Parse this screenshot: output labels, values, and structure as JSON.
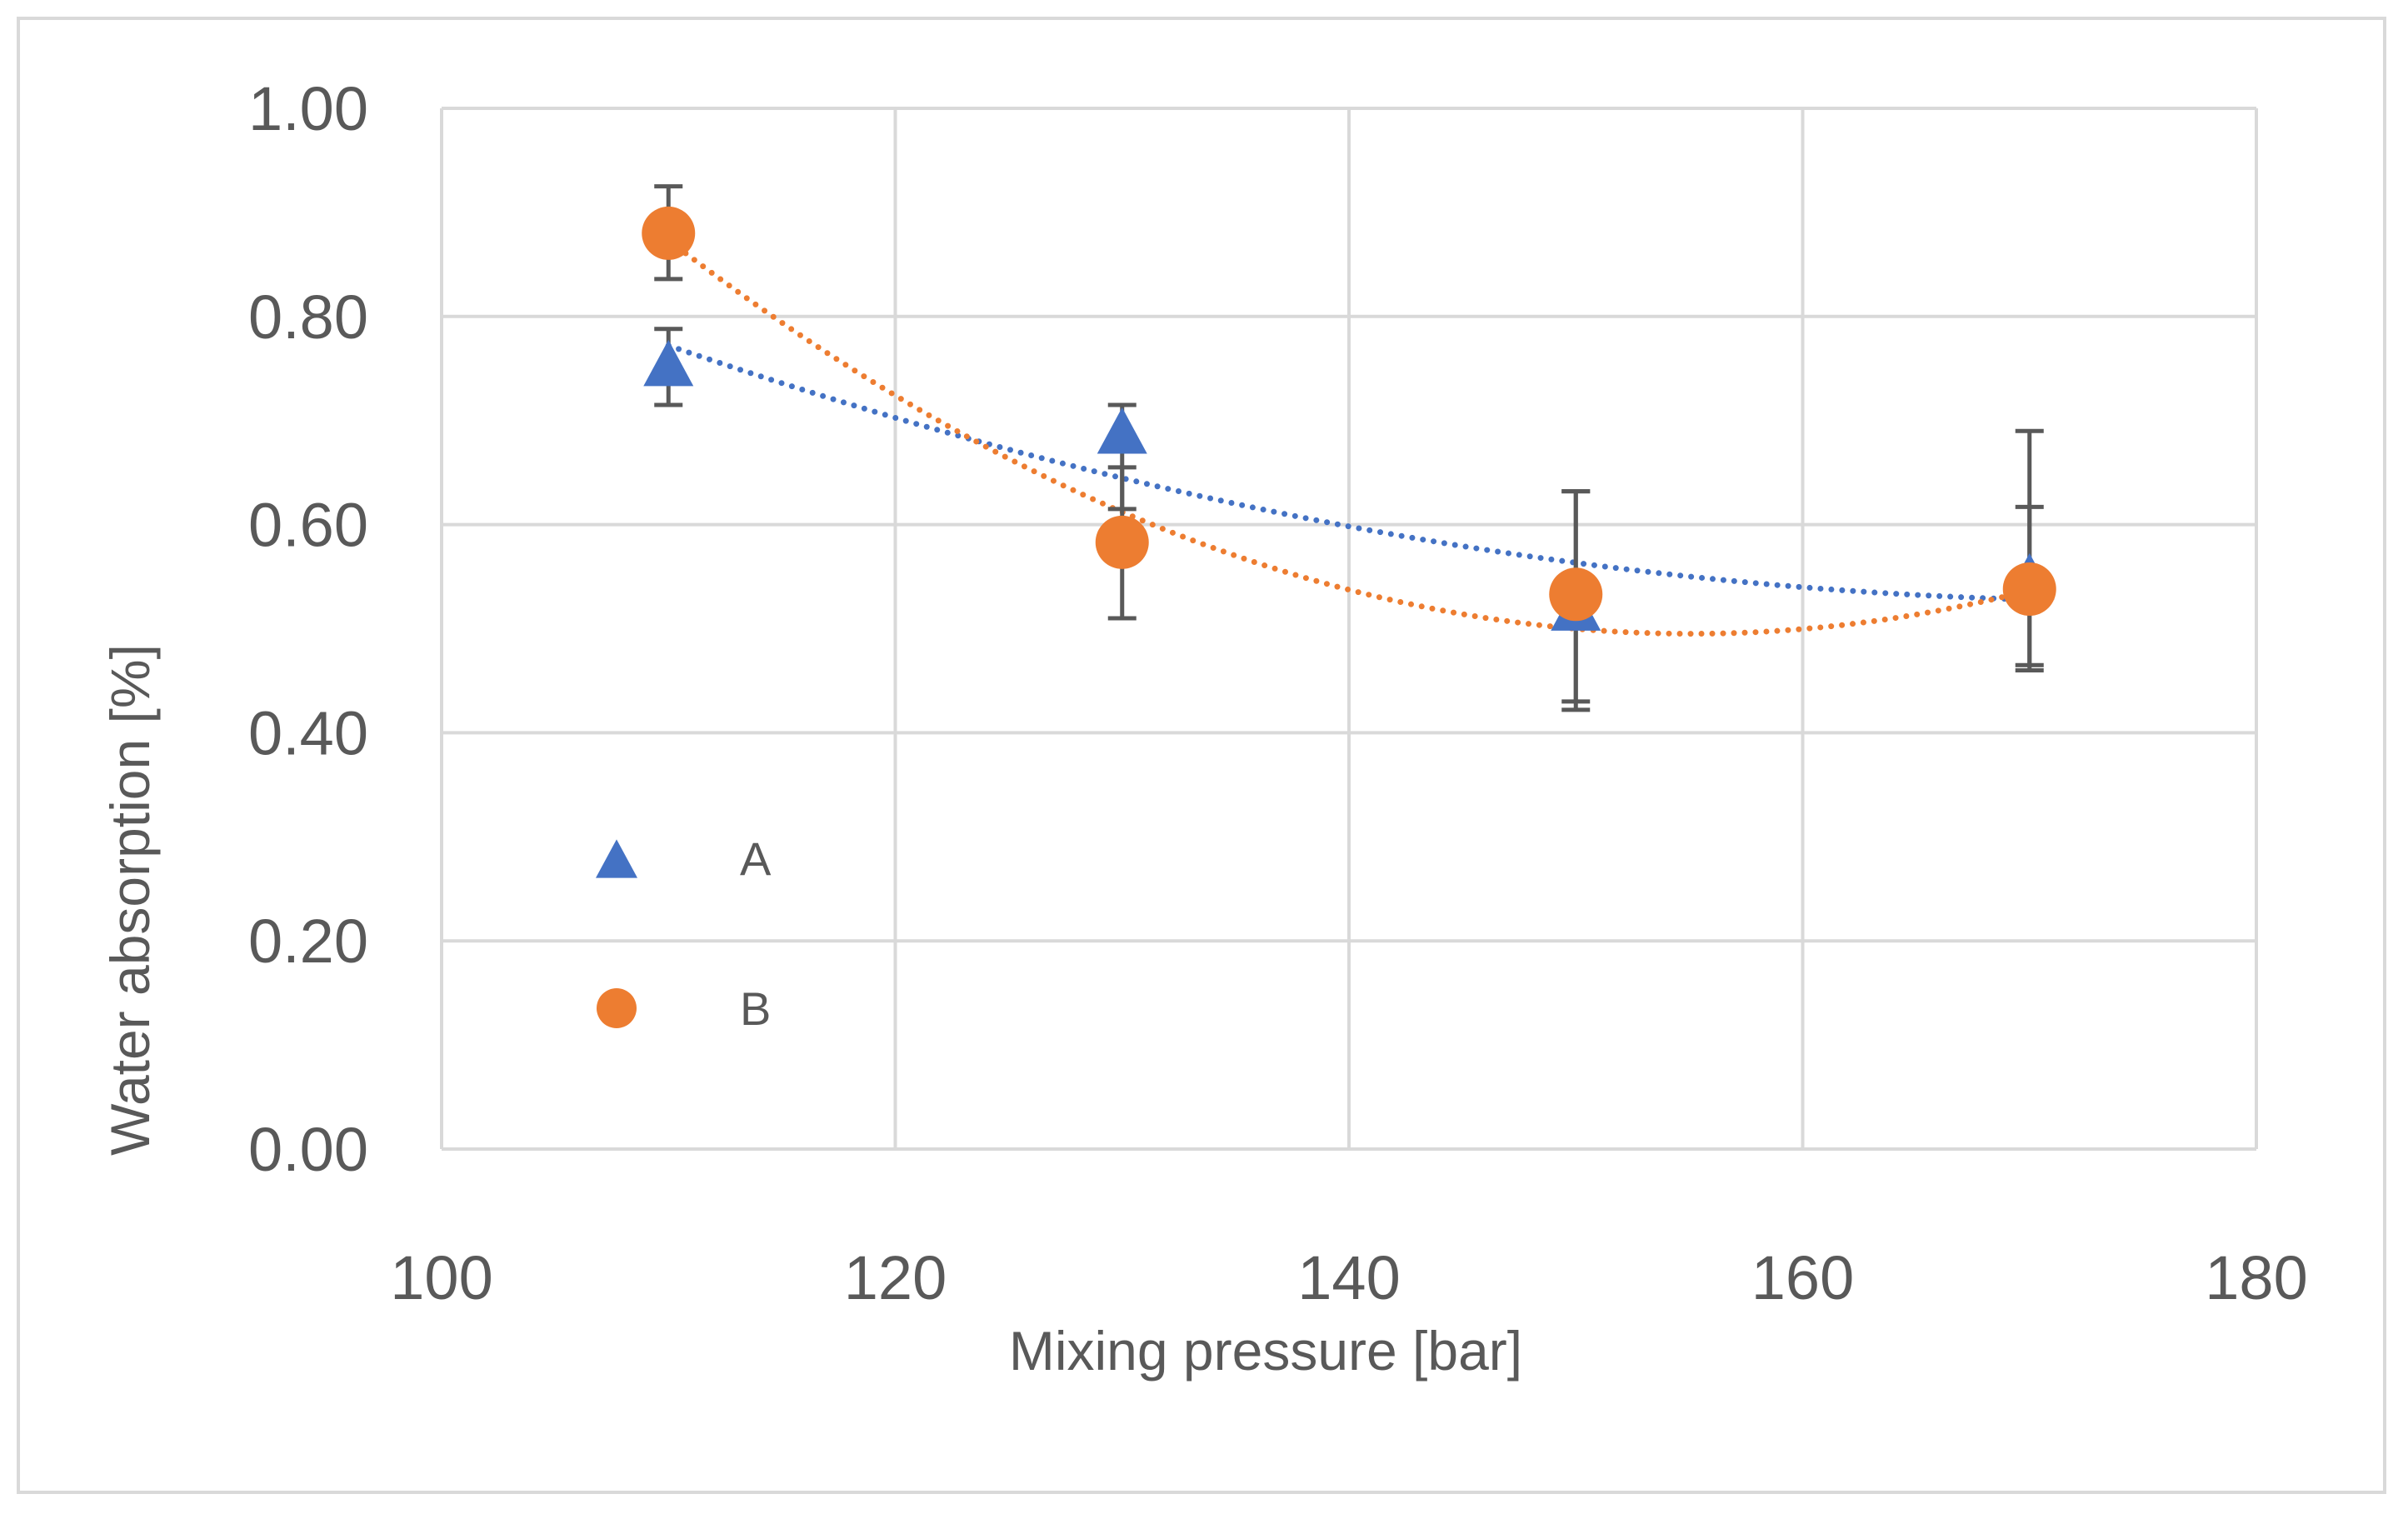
{
  "chart_data": {
    "type": "scatter",
    "title": "",
    "xlabel": "Mixing pressure [bar]",
    "ylabel": "Water absorption [%]",
    "xlim": [
      100,
      180
    ],
    "ylim": [
      0,
      1
    ],
    "x_ticks": [
      "100",
      "120",
      "140",
      "160",
      "180"
    ],
    "y_ticks": [
      "0.00",
      "0.20",
      "0.40",
      "0.60",
      "0.80",
      "1.00"
    ],
    "grid": true,
    "legend_position": "left",
    "series": [
      {
        "name": "A",
        "marker": "triangle",
        "color": "#4472c4",
        "x": [
          110,
          130,
          150,
          170
        ],
        "y": [
          0.75,
          0.685,
          0.515,
          0.545
        ],
        "err_low": [
          0.715,
          0.615,
          0.43,
          0.465
        ],
        "err_high": [
          0.788,
          0.715,
          0.632,
          0.617
        ],
        "trendline": "polynomial-2",
        "trend_y": [
          0.772,
          0.645,
          0.563,
          0.528
        ]
      },
      {
        "name": "B",
        "marker": "circle",
        "color": "#ed7d31",
        "x": [
          110,
          130,
          150,
          170
        ],
        "y": [
          0.88,
          0.583,
          0.533,
          0.538
        ],
        "err_low": [
          0.836,
          0.51,
          0.422,
          0.46
        ],
        "err_high": [
          0.925,
          0.655,
          0.632,
          0.69
        ],
        "trendline": "polynomial-2",
        "trend_y": [
          0.875,
          0.607,
          0.505,
          0.535
        ]
      }
    ]
  }
}
